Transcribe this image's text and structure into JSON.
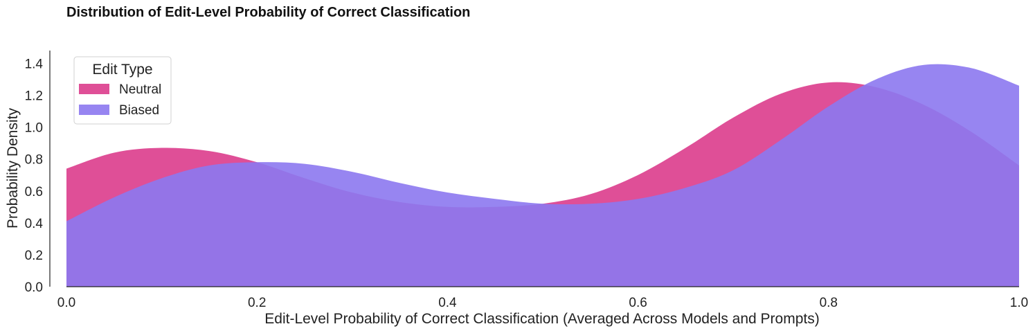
{
  "chart_data": {
    "type": "area",
    "title": "Distribution of Edit-Level Probability of Correct Classification",
    "xlabel": "Edit-Level Probability of Correct Classification (Averaged Across Models and Prompts)",
    "ylabel": "Probability Density",
    "xlim": [
      0.0,
      1.0
    ],
    "ylim": [
      0.0,
      1.48
    ],
    "xticks": [
      "0.0",
      "0.2",
      "0.4",
      "0.6",
      "0.8",
      "1.0"
    ],
    "yticks": [
      "0.0",
      "0.2",
      "0.4",
      "0.6",
      "0.8",
      "1.0",
      "1.2",
      "1.4"
    ],
    "grid": false,
    "legend": {
      "title": "Edit Type",
      "placement": "top-left"
    },
    "x": [
      0.0,
      0.05,
      0.1,
      0.15,
      0.2,
      0.25,
      0.3,
      0.35,
      0.4,
      0.45,
      0.5,
      0.55,
      0.6,
      0.65,
      0.7,
      0.75,
      0.8,
      0.85,
      0.9,
      0.95,
      1.0
    ],
    "series": [
      {
        "name": "Neutral",
        "color": "#dc3c8c",
        "values": [
          0.74,
          0.84,
          0.87,
          0.85,
          0.78,
          0.68,
          0.59,
          0.53,
          0.5,
          0.5,
          0.52,
          0.58,
          0.7,
          0.87,
          1.06,
          1.21,
          1.28,
          1.25,
          1.14,
          0.97,
          0.76
        ]
      },
      {
        "name": "Biased",
        "color": "#8c78f0",
        "values": [
          0.41,
          0.56,
          0.68,
          0.76,
          0.78,
          0.77,
          0.72,
          0.65,
          0.59,
          0.55,
          0.52,
          0.52,
          0.55,
          0.62,
          0.73,
          0.92,
          1.13,
          1.3,
          1.39,
          1.37,
          1.26
        ]
      }
    ]
  }
}
